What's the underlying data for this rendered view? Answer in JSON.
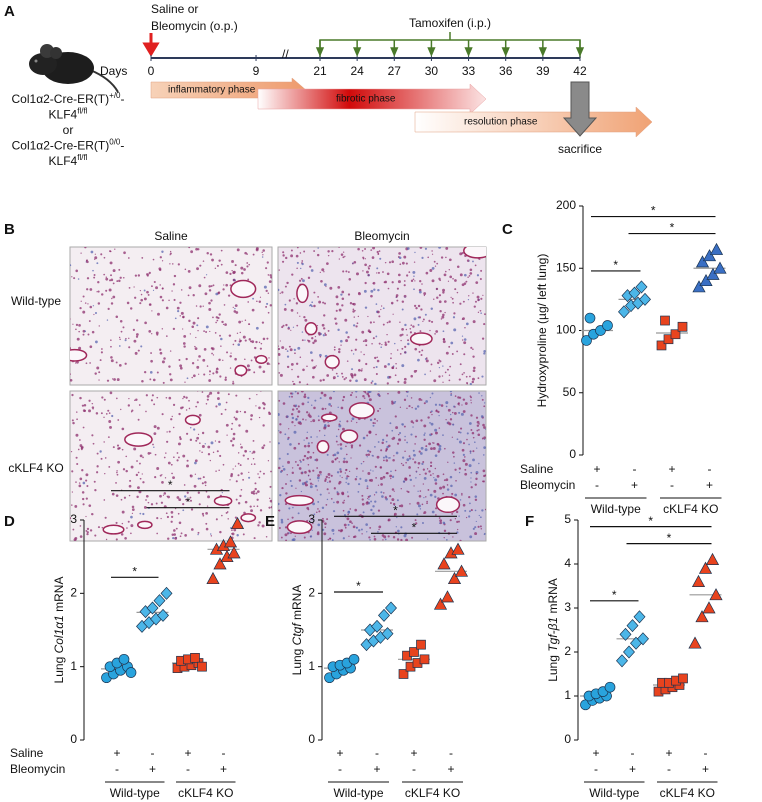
{
  "panel_a": {
    "letter": "A",
    "treatment": [
      "Saline or",
      "Bleomycin (o.p.)"
    ],
    "tamoxifen": "Tamoxifen (i.p.)",
    "days_label": "Days",
    "days": [
      0,
      9,
      21,
      24,
      27,
      30,
      33,
      36,
      39,
      42
    ],
    "tamoxifen_days": [
      21,
      24,
      27,
      30,
      33,
      36,
      39,
      42
    ],
    "genotype": [
      [
        {
          "text": "Col1α2-Cre-ER(T)"
        },
        {
          "sup": "+/0"
        },
        {
          "text": "-"
        }
      ],
      [
        {
          "text": "KLF4"
        },
        {
          "sup": "fl/fl"
        }
      ],
      [
        {
          "text": "or"
        }
      ],
      [
        {
          "text": "Col1α2-Cre-ER(T)"
        },
        {
          "sup": "0/0"
        },
        {
          "text": "-"
        }
      ],
      [
        {
          "text": "KLF4"
        },
        {
          "sup": "fl/fl"
        }
      ]
    ],
    "phases": [
      "inflammatory phase",
      "fibrotic phase",
      "resolution phase"
    ],
    "sacrifice": "sacrifice"
  },
  "panel_b": {
    "letter": "B",
    "columns": [
      "Saline",
      "Bleomycin"
    ],
    "rows": [
      "Wild-type",
      "cKLF4 KO"
    ]
  },
  "chart_data": [
    {
      "type": "dot",
      "panel": "C",
      "ylabel": [
        {
          "text": "Hydroxyproline (µg/ left lung)"
        }
      ],
      "ylim": [
        0,
        200
      ],
      "yticks": [
        0,
        50,
        100,
        150,
        200
      ],
      "series": [
        {
          "color": "#29a3dd",
          "marker": "circle",
          "values": [
            92,
            97,
            100,
            104,
            110
          ],
          "mean": 100
        },
        {
          "color": "#4cb6e8",
          "marker": "diamond",
          "values": [
            115,
            120,
            122,
            125,
            128,
            130,
            135
          ],
          "mean": 125
        },
        {
          "color": "#e8431e",
          "marker": "square",
          "values": [
            88,
            93,
            97,
            103,
            108
          ],
          "mean": 98
        },
        {
          "color": "#3a6fc4",
          "marker": "triangle",
          "values": [
            135,
            140,
            145,
            150,
            155,
            160,
            165
          ],
          "mean": 150
        }
      ],
      "conditions": [
        {
          "label": "Saline",
          "signs": [
            "+",
            "-",
            "+",
            "-"
          ]
        },
        {
          "label": "Bleomycin",
          "signs": [
            "-",
            "+",
            "-",
            "+"
          ]
        }
      ],
      "groups": [
        {
          "label": "Wild-type",
          "span": [
            0,
            1
          ]
        },
        {
          "label": "cKLF4 KO",
          "span": [
            2,
            3
          ]
        }
      ],
      "comparisons": [
        {
          "span": [
            0,
            1
          ],
          "label": "*"
        },
        {
          "span": [
            1,
            3
          ],
          "label": "*"
        },
        {
          "span": [
            0,
            3
          ],
          "label": "*"
        }
      ]
    },
    {
      "type": "dot",
      "panel": "D",
      "ylabel": [
        {
          "text": "Lung "
        },
        {
          "italic": "Col1α1"
        },
        {
          "text": " mRNA"
        }
      ],
      "ylim": [
        0,
        3
      ],
      "yticks": [
        0,
        1,
        2,
        3
      ],
      "series": [
        {
          "color": "#29a3dd",
          "marker": "circle",
          "values": [
            0.85,
            0.9,
            0.95,
            1.0,
            1.0,
            1.05,
            1.1,
            0.92
          ],
          "mean": 0.97
        },
        {
          "color": "#4cb6e8",
          "marker": "diamond",
          "values": [
            1.55,
            1.6,
            1.65,
            1.7,
            1.75,
            1.8,
            1.9,
            2.0
          ],
          "mean": 1.74
        },
        {
          "color": "#e8431e",
          "marker": "square",
          "values": [
            0.98,
            1.0,
            1.02,
            1.05,
            1.08,
            1.1,
            1.12,
            1.0
          ],
          "mean": 1.05
        },
        {
          "color": "#e8431e",
          "marker": "triangle",
          "values": [
            2.2,
            2.4,
            2.5,
            2.55,
            2.6,
            2.65,
            2.7,
            2.95
          ],
          "mean": 2.6
        }
      ],
      "conditions": [
        {
          "label": "Saline",
          "signs": [
            "+",
            "-",
            "+",
            "-"
          ]
        },
        {
          "label": "Bleomycin",
          "signs": [
            "-",
            "+",
            "-",
            "+"
          ]
        }
      ],
      "groups": [
        {
          "label": "Wild-type",
          "span": [
            0,
            1
          ]
        },
        {
          "label": "cKLF4 KO",
          "span": [
            2,
            3
          ]
        }
      ],
      "comparisons": [
        {
          "span": [
            0,
            1
          ],
          "label": "*"
        },
        {
          "span": [
            1,
            3
          ],
          "label": "*"
        },
        {
          "span": [
            0,
            3
          ],
          "label": "*"
        }
      ]
    },
    {
      "type": "dot",
      "panel": "E",
      "ylabel": [
        {
          "text": "Lung "
        },
        {
          "italic": "Ctgf"
        },
        {
          "text": " mRNA"
        }
      ],
      "ylim": [
        0,
        3
      ],
      "yticks": [
        0,
        1,
        2,
        3
      ],
      "series": [
        {
          "color": "#29a3dd",
          "marker": "circle",
          "values": [
            0.85,
            0.9,
            0.95,
            0.98,
            1.0,
            1.02,
            1.05,
            1.1
          ],
          "mean": 0.98
        },
        {
          "color": "#4cb6e8",
          "marker": "diamond",
          "values": [
            1.3,
            1.35,
            1.4,
            1.45,
            1.5,
            1.55,
            1.7,
            1.8
          ],
          "mean": 1.5
        },
        {
          "color": "#e8431e",
          "marker": "square",
          "values": [
            0.9,
            1.0,
            1.05,
            1.1,
            1.15,
            1.2,
            1.3
          ],
          "mean": 1.1
        },
        {
          "color": "#e8431e",
          "marker": "triangle",
          "values": [
            1.85,
            1.95,
            2.2,
            2.3,
            2.4,
            2.55,
            2.6
          ],
          "mean": 2.3
        }
      ],
      "conditions": [
        {
          "signs": [
            "+",
            "-",
            "+",
            "-"
          ]
        },
        {
          "signs": [
            "-",
            "+",
            "-",
            "+"
          ]
        }
      ],
      "groups": [
        {
          "label": "Wild-type",
          "span": [
            0,
            1
          ]
        },
        {
          "label": "cKLF4 KO",
          "span": [
            2,
            3
          ]
        }
      ],
      "comparisons": [
        {
          "span": [
            0,
            1
          ],
          "label": "*"
        },
        {
          "span": [
            1,
            3
          ],
          "label": "*"
        },
        {
          "span": [
            0,
            3
          ],
          "label": "*"
        }
      ]
    },
    {
      "type": "dot",
      "panel": "F",
      "ylabel": [
        {
          "text": "Lung "
        },
        {
          "italic": "Tgf-β1"
        },
        {
          "text": " mRNA"
        }
      ],
      "ylim": [
        0,
        5
      ],
      "yticks": [
        0,
        1,
        2,
        3,
        4,
        5
      ],
      "series": [
        {
          "color": "#29a3dd",
          "marker": "circle",
          "values": [
            0.8,
            0.9,
            0.95,
            1.0,
            1.0,
            1.05,
            1.1,
            1.2
          ],
          "mean": 1.0
        },
        {
          "color": "#4cb6e8",
          "marker": "diamond",
          "values": [
            1.8,
            2.0,
            2.2,
            2.3,
            2.4,
            2.6,
            2.8
          ],
          "mean": 2.3
        },
        {
          "color": "#e8431e",
          "marker": "square",
          "values": [
            1.1,
            1.15,
            1.2,
            1.25,
            1.3,
            1.3,
            1.35,
            1.4
          ],
          "mean": 1.25
        },
        {
          "color": "#e8431e",
          "marker": "triangle",
          "values": [
            2.2,
            2.8,
            3.0,
            3.3,
            3.6,
            3.9,
            4.1
          ],
          "mean": 3.3
        }
      ],
      "conditions": [
        {
          "signs": [
            "+",
            "-",
            "+",
            "-"
          ]
        },
        {
          "signs": [
            "-",
            "+",
            "-",
            "+"
          ]
        }
      ],
      "groups": [
        {
          "label": "Wild-type",
          "span": [
            0,
            1
          ]
        },
        {
          "label": "cKLF4 KO",
          "span": [
            2,
            3
          ]
        }
      ],
      "comparisons": [
        {
          "span": [
            0,
            1
          ],
          "label": "*"
        },
        {
          "span": [
            1,
            3
          ],
          "label": "*"
        },
        {
          "span": [
            0,
            3
          ],
          "label": "*"
        }
      ]
    }
  ]
}
